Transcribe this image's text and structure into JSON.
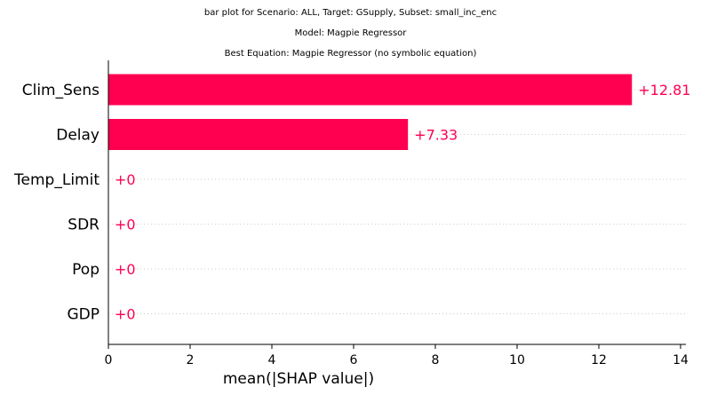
{
  "titles": {
    "line1": "bar plot for Scenario: ALL, Target: GSupply, Subset: small_inc_enc",
    "line2": "Model: Magpie Regressor",
    "line3": "Best Equation: Magpie Regressor (no symbolic equation)"
  },
  "colors": {
    "bar": "#ff0051",
    "grid_dots": "#cccccc",
    "axis": "#000000"
  },
  "chart_data": {
    "type": "bar",
    "orientation": "horizontal",
    "categories": [
      "Clim_Sens",
      "Delay",
      "Temp_Limit",
      "SDR",
      "Pop",
      "GDP"
    ],
    "values": [
      12.81,
      7.33,
      0,
      0,
      0,
      0
    ],
    "value_labels": [
      "+12.81",
      "+7.33",
      "+0",
      "+0",
      "+0",
      "+0"
    ],
    "xlabel": "mean(|SHAP value|)",
    "ylabel": "",
    "xlim": [
      0,
      14.1
    ],
    "xticks": [
      0,
      2,
      4,
      6,
      8,
      10,
      12,
      14
    ],
    "grid": "dotted row lines"
  }
}
